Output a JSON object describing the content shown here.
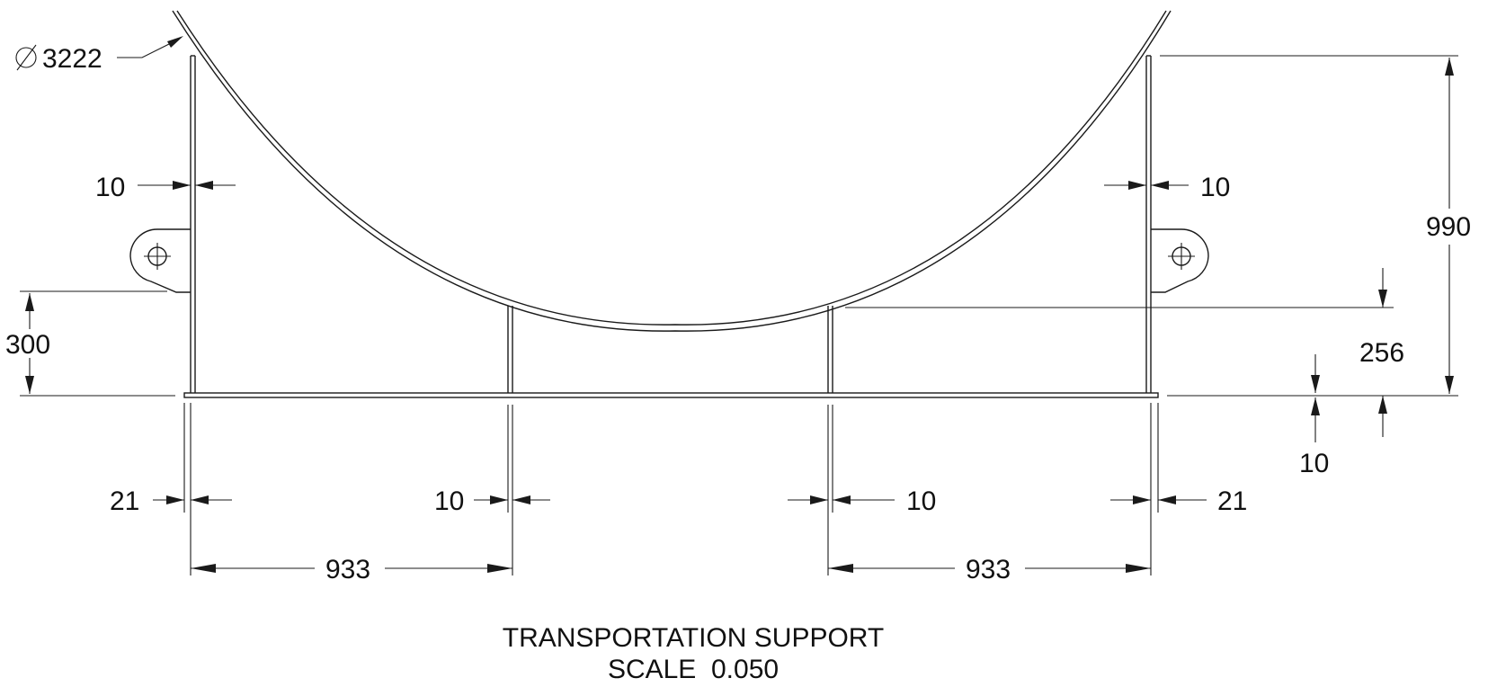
{
  "drawing": {
    "title": "TRANSPORTATION SUPPORT",
    "scale_label": "SCALE  0.050"
  },
  "dimensions": {
    "diameter": "3222",
    "height_total": "990",
    "lug_height": "300",
    "inner_support_height": "256",
    "base_thickness": "10",
    "outer_plate_left": "10",
    "outer_plate_right": "10",
    "edge_left": "21",
    "edge_right": "21",
    "inner_plate_left": "10",
    "inner_plate_right": "10",
    "spacing_left": "933",
    "spacing_right": "933"
  },
  "symbols": {
    "diameter_symbol": "diameter-icon"
  },
  "colors": {
    "line": "#1a1a1a",
    "background": "#ffffff"
  }
}
